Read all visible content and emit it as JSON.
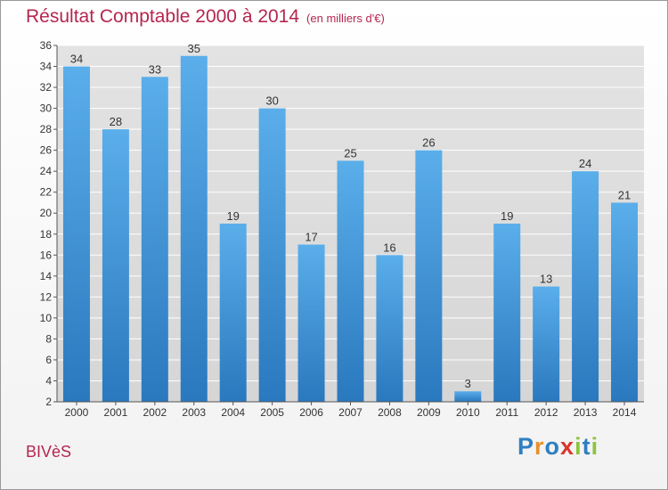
{
  "header": {
    "title": "Résultat Comptable 2000 à 2014",
    "unit_note": "(en milliers d'€)"
  },
  "footer": {
    "commune": "BIVèS",
    "logo_letters": [
      "P",
      "r",
      "o",
      "x",
      "i",
      "t",
      "i"
    ]
  },
  "colors": {
    "title": "#b5264f",
    "bar_top": "#5aaeea",
    "bar_bottom": "#2a78be"
  },
  "chart_data": {
    "type": "bar",
    "title": "Résultat Comptable 2000 à 2014",
    "subtitle": "(en milliers d'€)",
    "xlabel": "",
    "ylabel": "",
    "categories": [
      "2000",
      "2001",
      "2002",
      "2003",
      "2004",
      "2005",
      "2006",
      "2007",
      "2008",
      "2009",
      "2010",
      "2011",
      "2012",
      "2013",
      "2014"
    ],
    "values": [
      34,
      28,
      33,
      35,
      19,
      30,
      17,
      25,
      16,
      26,
      3,
      19,
      13,
      24,
      21
    ],
    "ylim": [
      2,
      36
    ],
    "yticks": [
      2,
      4,
      6,
      8,
      10,
      12,
      14,
      16,
      18,
      20,
      22,
      24,
      26,
      28,
      30,
      32,
      34,
      36
    ],
    "grid": true,
    "data_labels": true
  }
}
